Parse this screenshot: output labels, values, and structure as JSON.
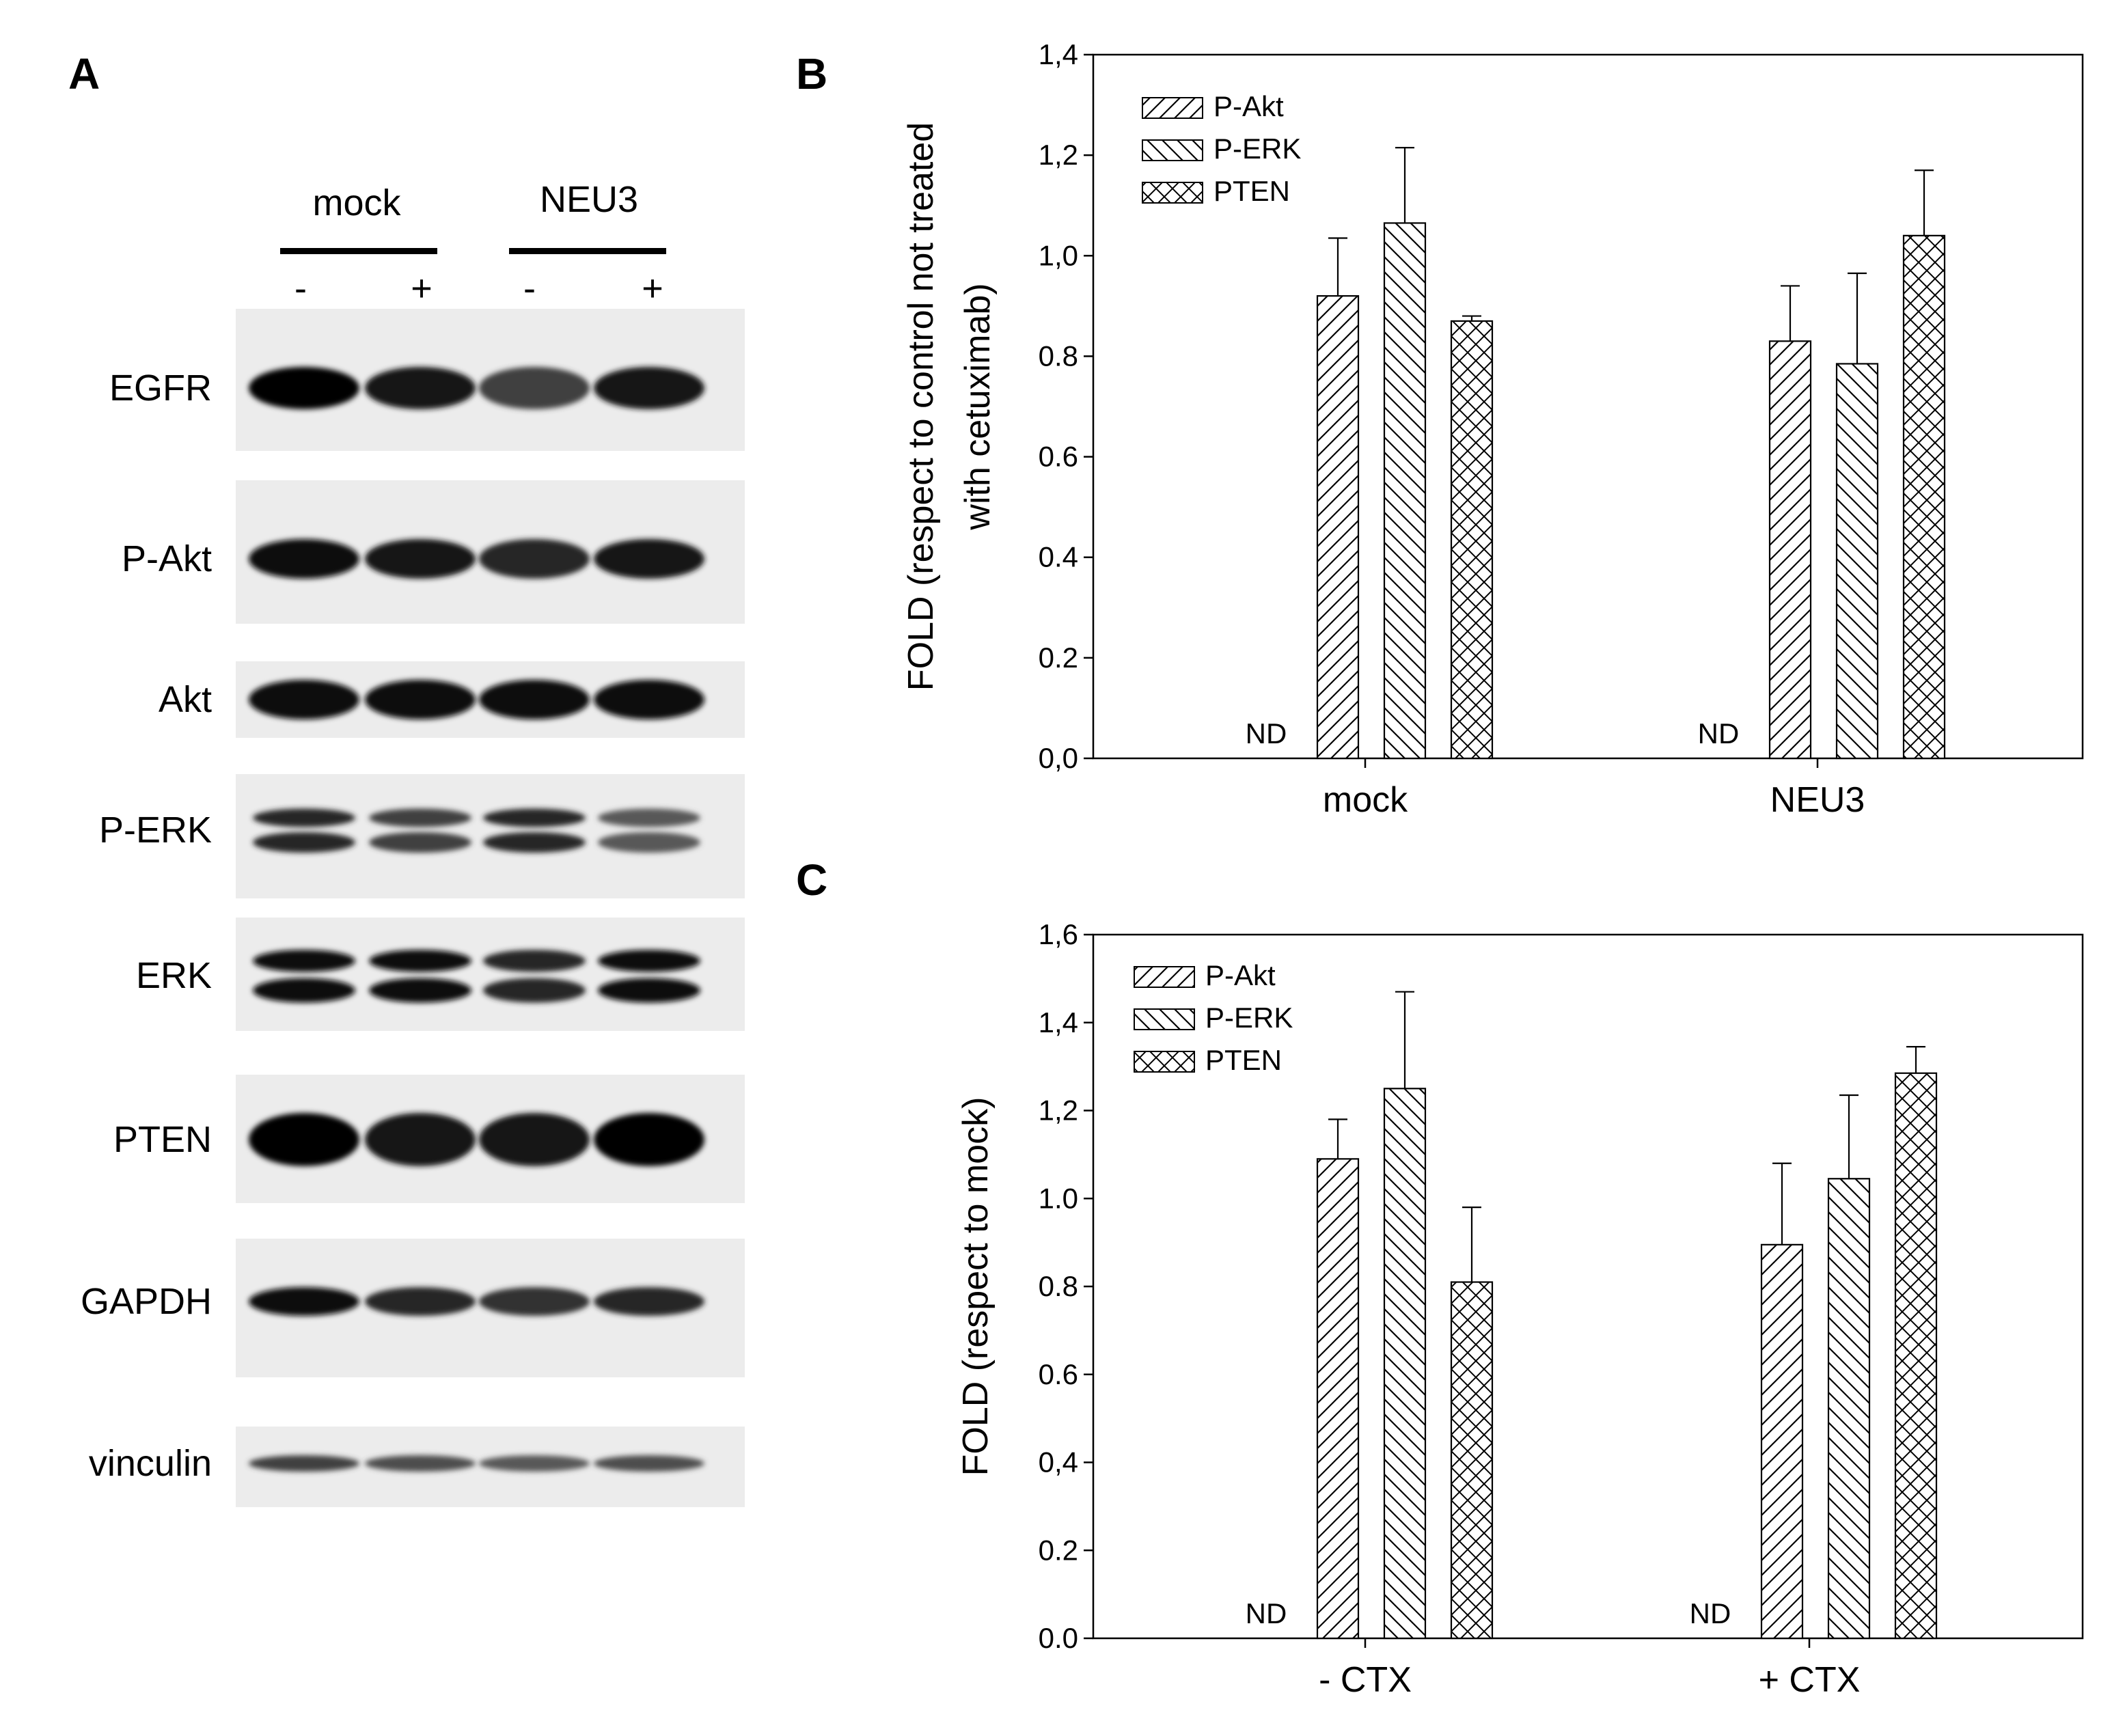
{
  "panels": {
    "a": {
      "letter": "A"
    },
    "b": {
      "letter": "B"
    },
    "c": {
      "letter": "C"
    }
  },
  "blot": {
    "groups": [
      "mock",
      "NEU3"
    ],
    "treatments": [
      "-",
      "+",
      "-",
      "+"
    ],
    "rows": [
      {
        "label": "EGFR",
        "intensity": [
          1.0,
          0.9,
          0.75,
          0.9
        ]
      },
      {
        "label": "P-Akt",
        "intensity": [
          0.95,
          0.9,
          0.85,
          0.9
        ]
      },
      {
        "label": "Akt",
        "intensity": [
          0.95,
          0.95,
          0.95,
          0.95
        ]
      },
      {
        "label": "P-ERK",
        "intensity": [
          0.85,
          0.75,
          0.85,
          0.65
        ]
      },
      {
        "label": "ERK",
        "intensity": [
          0.95,
          0.95,
          0.85,
          0.95
        ]
      },
      {
        "label": "PTEN",
        "intensity": [
          1.0,
          0.9,
          0.9,
          1.0
        ]
      },
      {
        "label": "GAPDH",
        "intensity": [
          0.95,
          0.85,
          0.8,
          0.85
        ]
      },
      {
        "label": "vinculin",
        "intensity": [
          0.75,
          0.7,
          0.65,
          0.7
        ]
      }
    ]
  },
  "chart_data": [
    {
      "type": "bar",
      "panel": "B",
      "categories": [
        "mock",
        "NEU3"
      ],
      "ylabel_line1": "FOLD (respect to control not treated",
      "ylabel_line2": "with cetuximab)",
      "ylim": [
        0,
        1.4
      ],
      "yticks": [
        "0,0",
        "0.2",
        "0.4",
        "0.6",
        "0.8",
        "1,0",
        "1,2",
        "1,4"
      ],
      "legend_position": "top-left",
      "annotation": "ND",
      "series": [
        {
          "name": "P-Akt",
          "pattern": "hatch-right",
          "values": [
            0.92,
            0.83
          ],
          "errors": [
            0.115,
            0.11
          ]
        },
        {
          "name": "P-ERK",
          "pattern": "hatch-left",
          "values": [
            1.065,
            0.785
          ],
          "errors": [
            0.15,
            0.18
          ]
        },
        {
          "name": "PTEN",
          "pattern": "crosshatch",
          "values": [
            0.87,
            1.04
          ],
          "errors": [
            0.01,
            0.13
          ]
        }
      ]
    },
    {
      "type": "bar",
      "panel": "C",
      "categories": [
        "- CTX",
        "+ CTX"
      ],
      "ylabel_line1": "FOLD (respect to mock)",
      "ylabel_line2": "",
      "ylim": [
        0,
        1.6
      ],
      "yticks": [
        "0.0",
        "0.2",
        "0,4",
        "0.6",
        "0.8",
        "1.0",
        "1,2",
        "1,4",
        "1,6"
      ],
      "legend_position": "top-left",
      "annotation": "ND",
      "series": [
        {
          "name": "P-Akt",
          "pattern": "hatch-right",
          "values": [
            1.09,
            0.895
          ],
          "errors": [
            0.09,
            0.185
          ]
        },
        {
          "name": "P-ERK",
          "pattern": "hatch-left",
          "values": [
            1.25,
            1.045
          ],
          "errors": [
            0.22,
            0.19
          ]
        },
        {
          "name": "PTEN",
          "pattern": "crosshatch",
          "values": [
            0.81,
            1.285
          ],
          "errors": [
            0.17,
            0.06
          ]
        }
      ]
    }
  ]
}
